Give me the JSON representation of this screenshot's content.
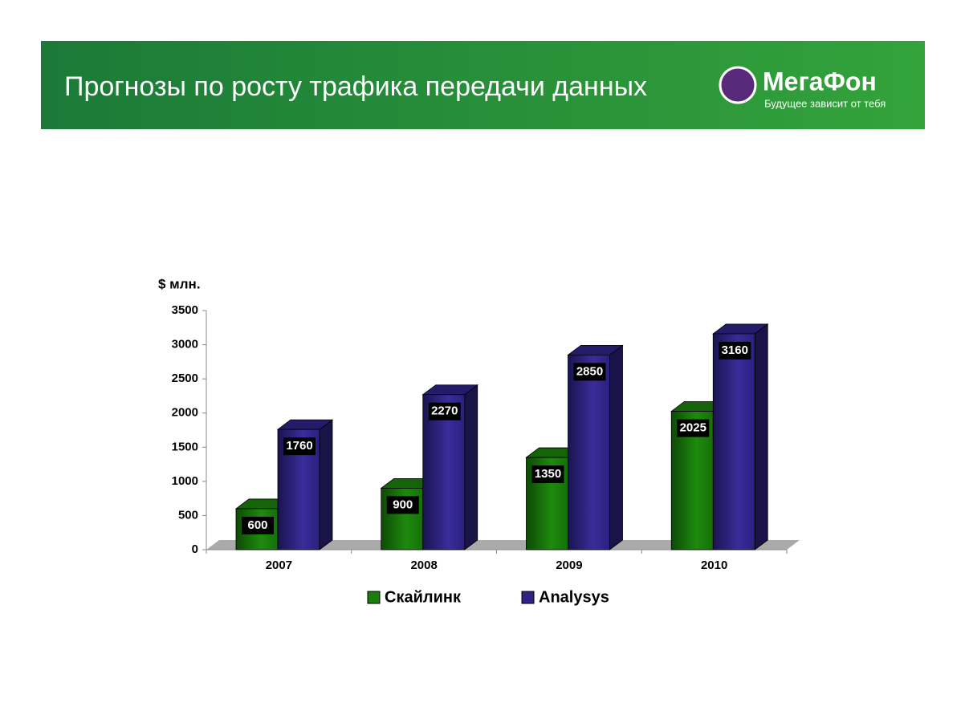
{
  "header": {
    "title": "Прогнозы по росту трафика передачи данных",
    "logo": "МегаФон",
    "slogan": "Будущее зависит от тебя"
  },
  "chart_data": {
    "type": "bar",
    "y_label": "$ млн.",
    "categories": [
      "2007",
      "2008",
      "2009",
      "2010"
    ],
    "series": [
      {
        "name": "Скайлинк",
        "color": "#1a7d0c",
        "values": [
          600,
          900,
          1350,
          2025
        ]
      },
      {
        "name": "Analysys",
        "color": "#2e2383",
        "values": [
          1760,
          2270,
          2850,
          3160
        ]
      }
    ],
    "ylim": [
      0,
      3500
    ],
    "yticks": [
      0,
      500,
      1000,
      1500,
      2000,
      2500,
      3000,
      3500
    ]
  }
}
